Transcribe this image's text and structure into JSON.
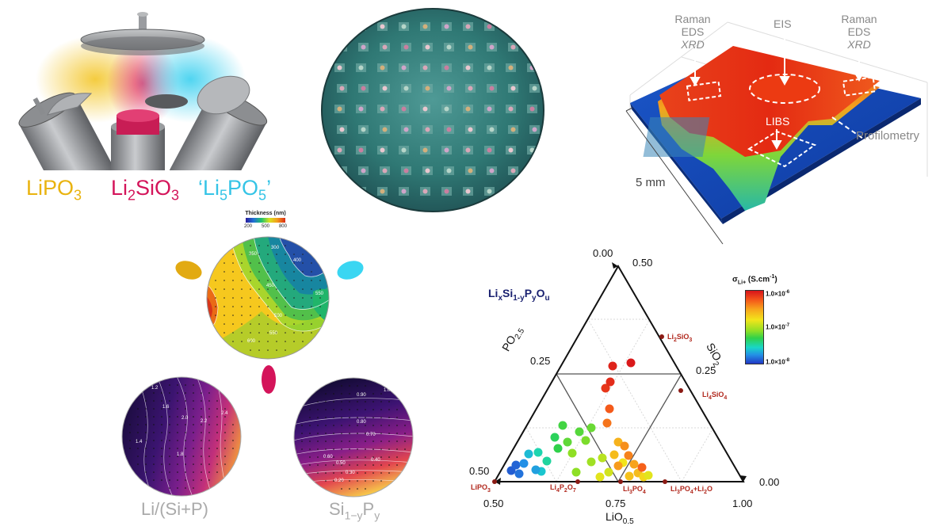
{
  "sources": {
    "labels": [
      {
        "text": "LiPO",
        "sub": "3",
        "color": "#e9b30f"
      },
      {
        "text": "Li",
        "sub": "2",
        "text2": "SiO",
        "sub2": "3",
        "color": "#d4145a"
      },
      {
        "text": "‘Li",
        "sub": "5",
        "text2": "PO",
        "sub2": "5",
        "text3": "’",
        "color": "#35c4e6"
      }
    ],
    "colors": {
      "lipo3": "#e9b30f",
      "li2sio3": "#d4145a",
      "li5po5": "#3ad6f2"
    }
  },
  "device": {
    "labels": {
      "raman_left": [
        "Raman",
        "EDS",
        "XRD"
      ],
      "eis": "EIS",
      "raman_right": [
        "Raman",
        "EDS",
        "XRD"
      ],
      "libs": "LIBS",
      "profilometry": "Profilometry",
      "scale": "5 mm"
    }
  },
  "thickness_map": {
    "title": "Thickness (nm)",
    "ticks": [
      "200",
      "500",
      "800"
    ],
    "contours": [
      "350",
      "300",
      "400",
      "450",
      "500",
      "600",
      "550",
      "550"
    ]
  },
  "maps": {
    "left_caption": "Li/(Si+P)",
    "left_contours": [
      "1.2",
      "1.6",
      "2.0",
      "2.2",
      "2.4",
      "1.4",
      "1.8"
    ],
    "right_caption_parts": [
      "Si",
      "1−y",
      "P",
      "y"
    ],
    "right_contours": [
      "0.90",
      "1.00",
      "0.80",
      "0.70",
      "0.60",
      "0.50",
      "0.40",
      "0.30",
      "0.20"
    ]
  },
  "ternary": {
    "formula": [
      "Li",
      "x",
      "Si",
      "1-y",
      "P",
      "y",
      "O",
      "u"
    ],
    "axis_labels": {
      "left": [
        "PO",
        "2.5"
      ],
      "right": [
        "SiO",
        "2"
      ],
      "bottom": [
        "LiO",
        "0.5"
      ]
    },
    "tick_labels": {
      "top_left": "0.00",
      "top_right": "0.50",
      "left_mid": "0.25",
      "right_mid": "0.25",
      "bottom_left_value": "0.50",
      "bottom_right_value": "0.00",
      "bottom": [
        "0.50",
        "0.75",
        "1.00"
      ]
    },
    "phases": [
      {
        "name": "LiPO",
        "sub": "3"
      },
      {
        "name": "Li",
        "sub": "4",
        "name2": "P",
        "sub2": "2",
        "name3": "O",
        "sub3": "7"
      },
      {
        "name": "Li",
        "sub": "3",
        "name2": "PO",
        "sub2": "4"
      },
      {
        "name": "Li",
        "sub": "3",
        "name2": "PO",
        "sub2": "4",
        "name3": "+Li",
        "sub3": "2",
        "name4": "O"
      },
      {
        "name": "Li",
        "sub": "2",
        "name2": "SiO",
        "sub2": "3"
      },
      {
        "name": "Li",
        "sub": "4",
        "name2": "SiO",
        "sub2": "4"
      }
    ],
    "colorbar": {
      "title_main": "σ",
      "title_sub": "Li+",
      "title_unit": " (S.cm",
      "title_exp": "-1",
      "title_close": ")",
      "ticks": [
        {
          "base": "1.0×10",
          "exp": "-6"
        },
        {
          "base": "1.0×10",
          "exp": "-7"
        },
        {
          "base": "1.0×10",
          "exp": "-8"
        }
      ]
    }
  },
  "chart_data": {
    "type": "scatter",
    "title": "LixSi1-yPyOu",
    "axes": [
      "LiO0.5",
      "SiO2",
      "PO2.5"
    ],
    "points": [
      {
        "x": 645,
        "y": 594,
        "c": 0.05
      },
      {
        "x": 655,
        "y": 598,
        "c": 0.08
      },
      {
        "x": 651,
        "y": 587,
        "c": 0.06
      },
      {
        "x": 661,
        "y": 585,
        "c": 0.12
      },
      {
        "x": 667,
        "y": 573,
        "c": 0.2
      },
      {
        "x": 679,
        "y": 571,
        "c": 0.28
      },
      {
        "x": 683,
        "y": 595,
        "c": 0.22
      },
      {
        "x": 690,
        "y": 582,
        "c": 0.3
      },
      {
        "x": 676,
        "y": 593,
        "c": 0.15
      },
      {
        "x": 710,
        "y": 537,
        "c": 0.42
      },
      {
        "x": 700,
        "y": 552,
        "c": 0.38
      },
      {
        "x": 716,
        "y": 558,
        "c": 0.45
      },
      {
        "x": 722,
        "y": 572,
        "c": 0.5
      },
      {
        "x": 704,
        "y": 566,
        "c": 0.4
      },
      {
        "x": 739,
        "y": 556,
        "c": 0.48
      },
      {
        "x": 746,
        "y": 540,
        "c": 0.46
      },
      {
        "x": 731,
        "y": 545,
        "c": 0.44
      },
      {
        "x": 760,
        "y": 578,
        "c": 0.55
      },
      {
        "x": 768,
        "y": 596,
        "c": 0.58
      },
      {
        "x": 757,
        "y": 602,
        "c": 0.6
      },
      {
        "x": 746,
        "y": 583,
        "c": 0.52
      },
      {
        "x": 727,
        "y": 596,
        "c": 0.5
      },
      {
        "x": 780,
        "y": 558,
        "c": 0.72
      },
      {
        "x": 788,
        "y": 563,
        "c": 0.78
      },
      {
        "x": 793,
        "y": 575,
        "c": 0.8
      },
      {
        "x": 786,
        "y": 584,
        "c": 0.62
      },
      {
        "x": 800,
        "y": 586,
        "c": 0.75
      },
      {
        "x": 805,
        "y": 597,
        "c": 0.7
      },
      {
        "x": 812,
        "y": 602,
        "c": 0.65
      },
      {
        "x": 818,
        "y": 600,
        "c": 0.6
      },
      {
        "x": 810,
        "y": 590,
        "c": 0.85
      },
      {
        "x": 780,
        "y": 588,
        "c": 0.76
      },
      {
        "x": 794,
        "y": 601,
        "c": 0.69
      },
      {
        "x": 766,
        "y": 534,
        "c": 0.82
      },
      {
        "x": 769,
        "y": 516,
        "c": 0.86
      },
      {
        "x": 764,
        "y": 490,
        "c": 0.93
      },
      {
        "x": 770,
        "y": 482,
        "c": 0.95
      },
      {
        "x": 773,
        "y": 462,
        "c": 0.97
      },
      {
        "x": 796,
        "y": 458,
        "c": 0.99
      },
      {
        "x": 775,
        "y": 574,
        "c": 0.7
      }
    ]
  }
}
